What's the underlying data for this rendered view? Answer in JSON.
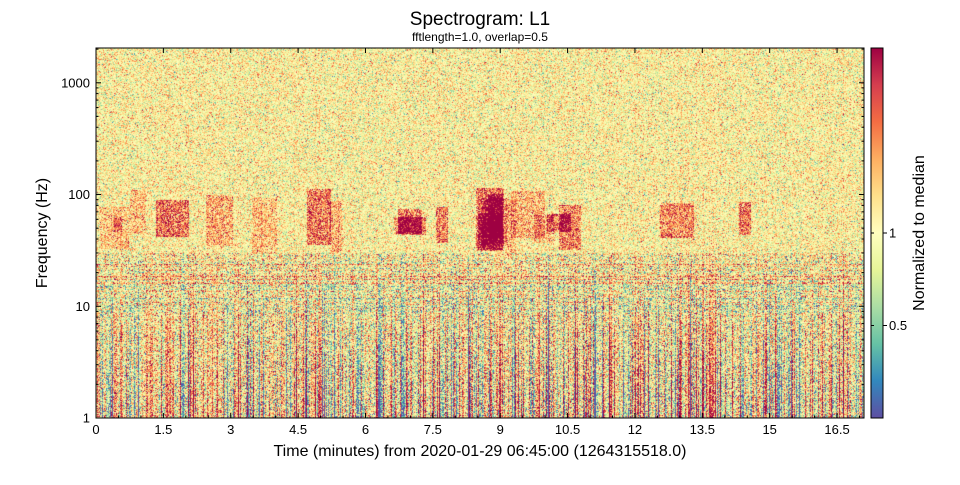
{
  "chart_data": {
    "type": "heatmap",
    "title": "Spectrogram: L1",
    "subtitle": "fftlength=1.0, overlap=0.5",
    "xlabel": "Time (minutes) from 2020-01-29 06:45:00 (1264315518.0)",
    "ylabel": "Frequency (Hz)",
    "colorbar_label": "Normalized to median",
    "x_unit": "minutes",
    "xlim": [
      0,
      17.1
    ],
    "ylim": [
      1,
      2048
    ],
    "y_scale": "log",
    "x_ticks": [
      0,
      1.5,
      3,
      4.5,
      6,
      7.5,
      9,
      10.5,
      12,
      13.5,
      15,
      16.5
    ],
    "x_tick_labels": [
      "0",
      "1.5",
      "3",
      "4.5",
      "6",
      "7.5",
      "9",
      "10.5",
      "12",
      "13.5",
      "15",
      "16.5"
    ],
    "y_ticks": [
      1,
      10,
      100,
      1000
    ],
    "y_tick_labels": [
      "1",
      "10",
      "100",
      "1000"
    ],
    "color_scale": "log",
    "color_range": [
      0.25,
      4
    ],
    "colorbar_ticks": [
      0.5,
      1
    ],
    "colorbar_tick_labels": [
      "0.5",
      "1"
    ],
    "colormap": [
      "#5e4fa2",
      "#3288bd",
      "#66c2a5",
      "#abdda4",
      "#e6f598",
      "#ffffbf",
      "#fee08b",
      "#fdae61",
      "#f46d43",
      "#d53e4f",
      "#9e0142"
    ],
    "grid": false
  }
}
